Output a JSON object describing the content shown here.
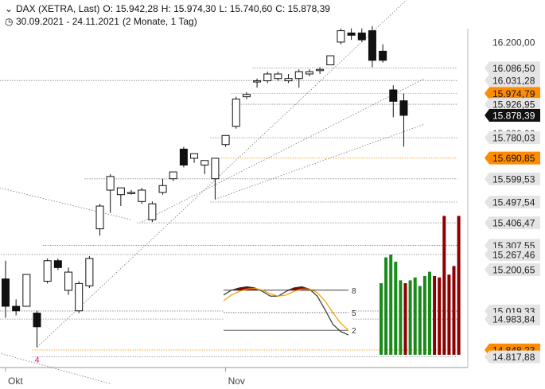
{
  "header": {
    "chevron": "chevron-down-icon",
    "instrument": "DAX (XETRA, Last)",
    "open": "O: 15.942,28",
    "high": "H: 15.974,30",
    "low": "L: 15.740,60",
    "close": "C: 15.878,39",
    "clock": "clock-icon",
    "range": "30.09.2021 - 24.11.2021",
    "period": "(2 Monate, 1 Tag)"
  },
  "chart_data": {
    "type": "candlestick",
    "ylim": [
      14820,
      16280
    ],
    "x_labels": [
      {
        "label": "Okt",
        "index": 0
      },
      {
        "label": "Nov",
        "index": 21
      }
    ],
    "candles": [
      {
        "o": 15160,
        "h": 15240,
        "l": 14990,
        "c": 15040
      },
      {
        "o": 15040,
        "h": 15070,
        "l": 15000,
        "c": 15020
      },
      {
        "o": 15040,
        "h": 15180,
        "l": 15040,
        "c": 15180
      },
      {
        "o": 15010,
        "h": 15020,
        "l": 14860,
        "c": 14950
      },
      {
        "o": 15150,
        "h": 15250,
        "l": 15140,
        "c": 15240
      },
      {
        "o": 15240,
        "h": 15250,
        "l": 15200,
        "c": 15210
      },
      {
        "o": 15110,
        "h": 15210,
        "l": 15090,
        "c": 15190
      },
      {
        "o": 15020,
        "h": 15150,
        "l": 15010,
        "c": 15140
      },
      {
        "o": 15130,
        "h": 15260,
        "l": 15120,
        "c": 15250
      },
      {
        "o": 15380,
        "h": 15490,
        "l": 15350,
        "c": 15480
      },
      {
        "o": 15550,
        "h": 15620,
        "l": 15450,
        "c": 15610
      },
      {
        "o": 15530,
        "h": 15560,
        "l": 15480,
        "c": 15560
      },
      {
        "o": 15540,
        "h": 15550,
        "l": 15530,
        "c": 15540
      },
      {
        "o": 15500,
        "h": 15560,
        "l": 15490,
        "c": 15550
      },
      {
        "o": 15420,
        "h": 15500,
        "l": 15410,
        "c": 15490
      },
      {
        "o": 15540,
        "h": 15600,
        "l": 15530,
        "c": 15570
      },
      {
        "o": 15600,
        "h": 15630,
        "l": 15590,
        "c": 15630
      },
      {
        "o": 15730,
        "h": 15740,
        "l": 15650,
        "c": 15660
      },
      {
        "o": 15690,
        "h": 15710,
        "l": 15670,
        "c": 15710
      },
      {
        "o": 15660,
        "h": 15680,
        "l": 15620,
        "c": 15680
      },
      {
        "o": 15600,
        "h": 15690,
        "l": 15510,
        "c": 15690
      },
      {
        "o": 15750,
        "h": 15790,
        "l": 15740,
        "c": 15790
      },
      {
        "o": 15830,
        "h": 15960,
        "l": 15820,
        "c": 15950
      },
      {
        "o": 15960,
        "h": 15980,
        "l": 15950,
        "c": 15970
      },
      {
        "o": 16030,
        "h": 16040,
        "l": 16000,
        "c": 16030
      },
      {
        "o": 16030,
        "h": 16070,
        "l": 16020,
        "c": 16060
      },
      {
        "o": 16040,
        "h": 16070,
        "l": 16030,
        "c": 16060
      },
      {
        "o": 16030,
        "h": 16060,
        "l": 16020,
        "c": 16040
      },
      {
        "o": 16040,
        "h": 16080,
        "l": 16000,
        "c": 16070
      },
      {
        "o": 16060,
        "h": 16080,
        "l": 16050,
        "c": 16070
      },
      {
        "o": 16080,
        "h": 16090,
        "l": 16060,
        "c": 16080
      },
      {
        "o": 16100,
        "h": 16140,
        "l": 16100,
        "c": 16140
      },
      {
        "o": 16200,
        "h": 16260,
        "l": 16190,
        "c": 16250
      },
      {
        "o": 16240,
        "h": 16260,
        "l": 16210,
        "c": 16230
      },
      {
        "o": 16240,
        "h": 16260,
        "l": 16200,
        "c": 16210
      },
      {
        "o": 16250,
        "h": 16270,
        "l": 16090,
        "c": 16120
      },
      {
        "o": 16160,
        "h": 16190,
        "l": 16110,
        "c": 16120
      },
      {
        "o": 15990,
        "h": 16010,
        "l": 15870,
        "c": 15940
      },
      {
        "o": 15942.28,
        "h": 15974.3,
        "l": 15740.6,
        "c": 15878.39
      }
    ],
    "price_labels": [
      {
        "text": "16.200,00",
        "value": 16200,
        "style": "plain"
      },
      {
        "text": "16.086,50",
        "value": 16086.5,
        "style": "grey"
      },
      {
        "text": "16.031,28",
        "value": 16031.28,
        "style": "grey"
      },
      {
        "text": "15.974,79",
        "value": 15974.79,
        "style": "orange"
      },
      {
        "text": "15.926,95",
        "value": 15926.95,
        "style": "grey"
      },
      {
        "text": "15.878,39",
        "value": 15878.39,
        "style": "black"
      },
      {
        "text": "15.800,00",
        "value": 15800,
        "style": "plain"
      },
      {
        "text": "15.780,03",
        "value": 15780.03,
        "style": "grey"
      },
      {
        "text": "15.690,85",
        "value": 15690.85,
        "style": "orange"
      },
      {
        "text": "15.599,53",
        "value": 15599.53,
        "style": "grey"
      },
      {
        "text": "15.497,54",
        "value": 15497.54,
        "style": "grey"
      },
      {
        "text": "15.406,47",
        "value": 15406.47,
        "style": "grey"
      },
      {
        "text": "15.307,55",
        "value": 15307.55,
        "style": "grey"
      },
      {
        "text": "15.267,46",
        "value": 15267.46,
        "style": "grey"
      },
      {
        "text": "15.200,65",
        "value": 15200.65,
        "style": "grey"
      },
      {
        "text": "15.019,33",
        "value": 15019.33,
        "style": "grey"
      },
      {
        "text": "14.983,84",
        "value": 14983.84,
        "style": "grey"
      },
      {
        "text": "14.848,23",
        "value": 14848.23,
        "style": "orange"
      },
      {
        "text": "14.817,88",
        "value": 14817.88,
        "style": "grey"
      }
    ],
    "hlines": [
      {
        "value": 16086.5,
        "from": 24,
        "color": "#888888"
      },
      {
        "value": 16031.28,
        "from": -1,
        "color": "#888888"
      },
      {
        "value": 15974.79,
        "from": 22,
        "color": "#ff9900"
      },
      {
        "value": 15926.95,
        "from": 22,
        "color": "#888888"
      },
      {
        "value": 15780.03,
        "from": 20,
        "color": "#888888"
      },
      {
        "value": 15690.85,
        "from": 21,
        "color": "#ff9900"
      },
      {
        "value": 15599.53,
        "from": 8,
        "color": "#888888"
      },
      {
        "value": 15497.54,
        "from": 20,
        "color": "#888888"
      },
      {
        "value": 15406.47,
        "from": 13,
        "color": "#888888"
      },
      {
        "value": 15307.55,
        "from": 4,
        "color": "#888888"
      },
      {
        "value": 15267.46,
        "from": 0,
        "color": "#888888"
      },
      {
        "value": 15019.33,
        "from": -1,
        "color": "#888888"
      },
      {
        "value": 14983.84,
        "from": -1,
        "color": "#888888"
      },
      {
        "value": 14848.23,
        "from": 3,
        "color": "#ff9900"
      },
      {
        "value": 14817.88,
        "from": 3,
        "color": "#888888"
      }
    ],
    "trendlines": [
      {
        "i1": 3,
        "p1": 14860,
        "i2": 40,
        "p2": 16460
      },
      {
        "i1": 13,
        "p1": 15410,
        "i2": 40,
        "p2": 16040
      },
      {
        "i1": 20,
        "p1": 15510,
        "i2": 40,
        "p2": 15840
      },
      {
        "i1": -6,
        "p1": 15620,
        "i2": 12,
        "p2": 15420
      },
      {
        "i1": -5,
        "p1": 14890,
        "i2": 10,
        "p2": 14700
      }
    ],
    "annotation": {
      "text": "4",
      "index": 3
    },
    "oscillator": {
      "levels": [
        "8",
        "5",
        "2"
      ],
      "fast": [
        80,
        88,
        92,
        94,
        92,
        86,
        78,
        78,
        86,
        92,
        94,
        90,
        78,
        55,
        30,
        18,
        12
      ],
      "slow": [
        70,
        80,
        86,
        90,
        91,
        88,
        82,
        78,
        80,
        86,
        90,
        90,
        84,
        70,
        50,
        32,
        20
      ]
    },
    "volume_bars": [
      {
        "v": 0.5,
        "c": "green"
      },
      {
        "v": 0.68,
        "c": "green"
      },
      {
        "v": 0.7,
        "c": "green"
      },
      {
        "v": 0.65,
        "c": "green"
      },
      {
        "v": 0.52,
        "c": "green"
      },
      {
        "v": 0.5,
        "c": "darkred"
      },
      {
        "v": 0.52,
        "c": "green"
      },
      {
        "v": 0.54,
        "c": "green"
      },
      {
        "v": 0.48,
        "c": "green"
      },
      {
        "v": 0.55,
        "c": "green"
      },
      {
        "v": 0.58,
        "c": "green"
      },
      {
        "v": 0.55,
        "c": "darkred"
      },
      {
        "v": 0.54,
        "c": "darkred"
      },
      {
        "v": 0.97,
        "c": "darkred"
      },
      {
        "v": 0.56,
        "c": "darkred"
      },
      {
        "v": 0.62,
        "c": "darkred"
      },
      {
        "v": 0.97,
        "c": "darkred"
      }
    ]
  }
}
